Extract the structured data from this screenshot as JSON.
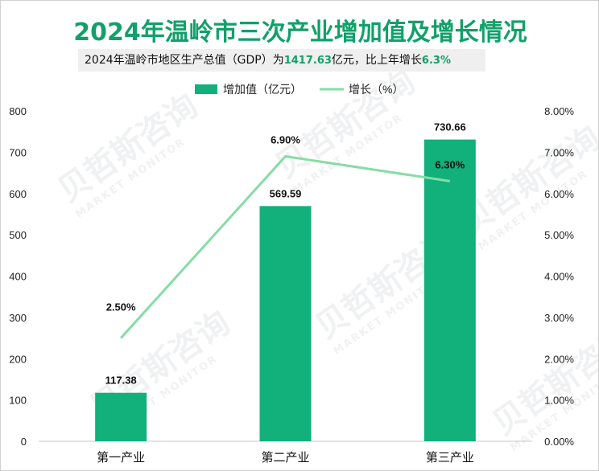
{
  "title": "2024年温岭市三次产业增加值及增长情况",
  "subtitle": {
    "prefix": "2024年温岭市地区生产总值（GDP）为",
    "gdp": "1417.63",
    "middle": "亿元，比上年增长",
    "growth": "6.3%"
  },
  "watermark": {
    "cn": "贝哲斯咨询",
    "en": "MARKET MONITOR"
  },
  "colors": {
    "bar": "#12b07a",
    "line": "#86dca6",
    "title": "#12a06a"
  },
  "chart_data": {
    "type": "bar+line",
    "title": "2024年温岭市三次产业增加值及增长情况",
    "categories": [
      "第一产业",
      "第二产业",
      "第三产业"
    ],
    "series": [
      {
        "name": "增加值（亿元）",
        "type": "bar",
        "axis": "left",
        "values": [
          117.38,
          569.59,
          730.66
        ],
        "labels": [
          "117.38",
          "569.59",
          "730.66"
        ]
      },
      {
        "name": "增长（%）",
        "type": "line",
        "axis": "right",
        "values": [
          2.5,
          6.9,
          6.3
        ],
        "labels": [
          "2.50%",
          "6.90%",
          "6.30%"
        ]
      }
    ],
    "y_left": {
      "min": 0,
      "max": 800,
      "ticks": [
        "0",
        "100",
        "200",
        "300",
        "400",
        "500",
        "600",
        "700",
        "800"
      ]
    },
    "y_right": {
      "min": 0,
      "max": 8,
      "ticks": [
        "0.00%",
        "1.00%",
        "2.00%",
        "3.00%",
        "4.00%",
        "5.00%",
        "6.00%",
        "7.00%",
        "8.00%"
      ]
    },
    "legend": [
      "增加值（亿元）",
      "增长（%）"
    ],
    "legend_position": "top"
  }
}
